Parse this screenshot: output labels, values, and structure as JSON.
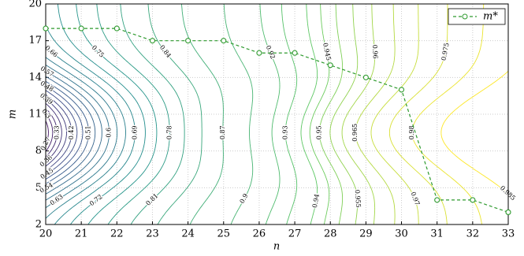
{
  "chart_data": {
    "type": "line",
    "xlabel": "n",
    "ylabel": "m",
    "x": [
      20,
      21,
      22,
      23,
      24,
      25,
      26,
      27,
      28,
      29,
      30,
      31,
      32,
      33
    ],
    "series": [
      {
        "name": "m*",
        "color": "#2e9a2e",
        "values": [
          18,
          18,
          18,
          17,
          17,
          17,
          16,
          16,
          15,
          14,
          13,
          4,
          4,
          3
        ]
      }
    ],
    "xlim": [
      20,
      33
    ],
    "xticks": [
      20,
      21,
      22,
      23,
      24,
      25,
      26,
      27,
      28,
      29,
      30,
      31,
      32,
      33
    ],
    "ylim": [
      2,
      20
    ],
    "yticks": [
      2,
      5,
      8,
      11,
      14,
      17,
      20
    ],
    "grid": true,
    "legend": "upper right",
    "contour_levels": [
      0.21,
      0.24,
      0.27,
      0.3,
      0.33,
      0.36,
      0.39,
      0.42,
      0.45,
      0.48,
      0.51,
      0.54,
      0.57,
      0.6,
      0.63,
      0.66,
      0.69,
      0.72,
      0.75,
      0.78,
      0.81,
      0.84,
      0.87,
      0.9,
      0.92,
      0.93,
      0.94,
      0.945,
      0.95,
      0.955,
      0.96,
      0.965,
      0.97,
      0.975,
      0.98,
      0.985
    ]
  }
}
